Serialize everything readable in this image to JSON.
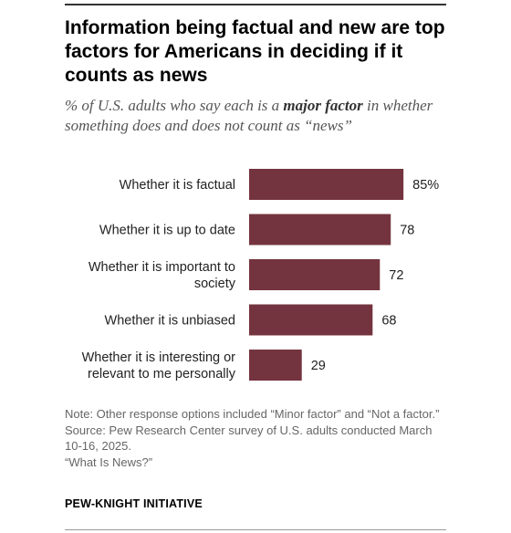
{
  "title": "Information being factual and new are top factors for Americans in deciding if it counts as news",
  "subtitle": {
    "before": "% of U.S. adults who say each is a ",
    "emphasis": "major factor",
    "after": " in whether something does and does not count as “news”"
  },
  "chart_data": {
    "type": "bar",
    "orientation": "horizontal",
    "categories": [
      [
        "Whether it is factual"
      ],
      [
        "Whether it is up to date"
      ],
      [
        "Whether it is important to",
        "society"
      ],
      [
        "Whether it is unbiased"
      ],
      [
        "Whether it is interesting or",
        "relevant to me personally"
      ]
    ],
    "values": [
      85,
      78,
      72,
      68,
      29
    ],
    "value_labels": [
      "85%",
      "78",
      "72",
      "68",
      "29"
    ],
    "xlim": [
      0,
      100
    ],
    "grid": false,
    "bar_color": "#74343f"
  },
  "notes": {
    "note": "Note: Other response options included “Minor factor” and “Not a factor.”",
    "source": "Source: Pew Research Center survey of U.S. adults conducted March 10-16, 2025.",
    "report": "“What Is News?”"
  },
  "brand": "PEW-KNIGHT INITIATIVE"
}
